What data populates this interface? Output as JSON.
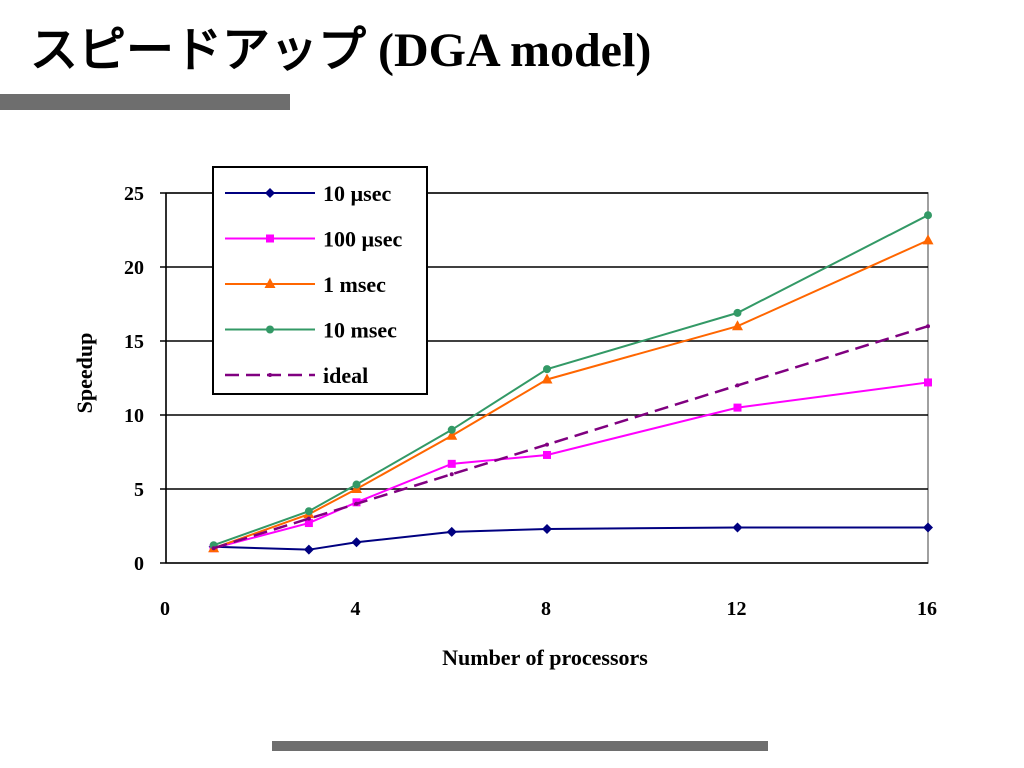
{
  "slide": {
    "title": "スピードアップ (DGA model)"
  },
  "chart_data": {
    "type": "line",
    "xlabel": "Number of processors",
    "ylabel": "Speedup",
    "xlim": [
      0,
      16
    ],
    "ylim": [
      0,
      25
    ],
    "xticks": [
      0,
      4,
      8,
      12,
      16
    ],
    "yticks": [
      0,
      5,
      10,
      15,
      20,
      25
    ],
    "grid": "horizontal",
    "legend_position": "top-left",
    "series": [
      {
        "name": "10 µsec",
        "color": "#000080",
        "marker": "diamond",
        "dash": "solid",
        "x": [
          1,
          3,
          4,
          6,
          8,
          12,
          16
        ],
        "y": [
          1.1,
          0.9,
          1.4,
          2.1,
          2.3,
          2.4,
          2.4
        ]
      },
      {
        "name": "100 µsec",
        "color": "#ff00ff",
        "marker": "square",
        "dash": "solid",
        "x": [
          1,
          3,
          4,
          6,
          8,
          12,
          16
        ],
        "y": [
          1.0,
          2.7,
          4.1,
          6.7,
          7.3,
          10.5,
          12.2
        ]
      },
      {
        "name": "1 msec",
        "color": "#ff6600",
        "marker": "triangle",
        "dash": "solid",
        "x": [
          1,
          3,
          4,
          6,
          8,
          12,
          16
        ],
        "y": [
          1.0,
          3.3,
          5.0,
          8.6,
          12.4,
          16.0,
          21.8
        ]
      },
      {
        "name": "10 msec",
        "color": "#339966",
        "marker": "circle",
        "dash": "solid",
        "x": [
          1,
          3,
          4,
          6,
          8,
          12,
          16
        ],
        "y": [
          1.2,
          3.5,
          5.3,
          9.0,
          13.1,
          16.9,
          23.5
        ]
      },
      {
        "name": "ideal",
        "color": "#800080",
        "marker": "dot",
        "dash": "dashed",
        "x": [
          1,
          3,
          4,
          6,
          8,
          12,
          16
        ],
        "y": [
          1,
          3,
          4,
          6,
          8,
          12,
          16
        ]
      }
    ]
  }
}
